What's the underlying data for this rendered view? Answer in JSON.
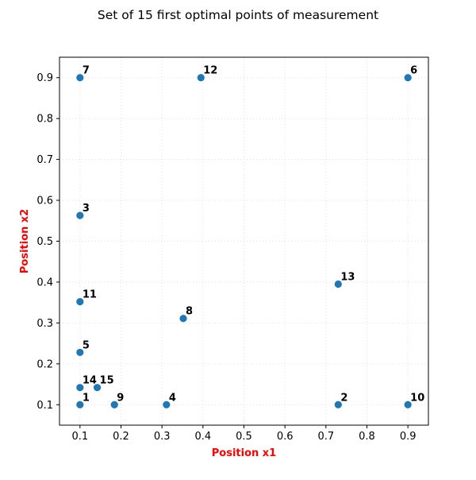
{
  "chart_data": {
    "type": "scatter",
    "title": "Set of 15 first optimal points of measurement",
    "xlabel": "Position x1",
    "ylabel": "Position x2",
    "xlim": [
      0.05,
      0.95
    ],
    "ylim": [
      0.05,
      0.95
    ],
    "xticks": [
      0.1,
      0.2,
      0.3,
      0.4,
      0.5,
      0.6,
      0.7,
      0.8,
      0.9
    ],
    "yticks": [
      0.1,
      0.2,
      0.3,
      0.4,
      0.5,
      0.6,
      0.7,
      0.8,
      0.9
    ],
    "xtick_labels": [
      "0.1",
      "0.2",
      "0.3",
      "0.4",
      "0.5",
      "0.6",
      "0.7",
      "0.8",
      "0.9"
    ],
    "ytick_labels": [
      "0.1",
      "0.2",
      "0.3",
      "0.4",
      "0.5",
      "0.6",
      "0.7",
      "0.8",
      "0.9"
    ],
    "grid": true,
    "grid_style": "dotted",
    "label_color": "#ff0000",
    "point_color": "#1f77b4",
    "points": [
      {
        "label": "1",
        "x": 0.1,
        "y": 0.1
      },
      {
        "label": "2",
        "x": 0.73,
        "y": 0.1
      },
      {
        "label": "3",
        "x": 0.1,
        "y": 0.563
      },
      {
        "label": "4",
        "x": 0.311,
        "y": 0.1
      },
      {
        "label": "5",
        "x": 0.1,
        "y": 0.228
      },
      {
        "label": "6",
        "x": 0.9,
        "y": 0.9
      },
      {
        "label": "7",
        "x": 0.1,
        "y": 0.9
      },
      {
        "label": "8",
        "x": 0.352,
        "y": 0.311
      },
      {
        "label": "9",
        "x": 0.184,
        "y": 0.1
      },
      {
        "label": "10",
        "x": 0.9,
        "y": 0.1
      },
      {
        "label": "11",
        "x": 0.1,
        "y": 0.352
      },
      {
        "label": "12",
        "x": 0.395,
        "y": 0.9
      },
      {
        "label": "13",
        "x": 0.73,
        "y": 0.395
      },
      {
        "label": "14",
        "x": 0.1,
        "y": 0.142
      },
      {
        "label": "15",
        "x": 0.142,
        "y": 0.142
      }
    ]
  }
}
